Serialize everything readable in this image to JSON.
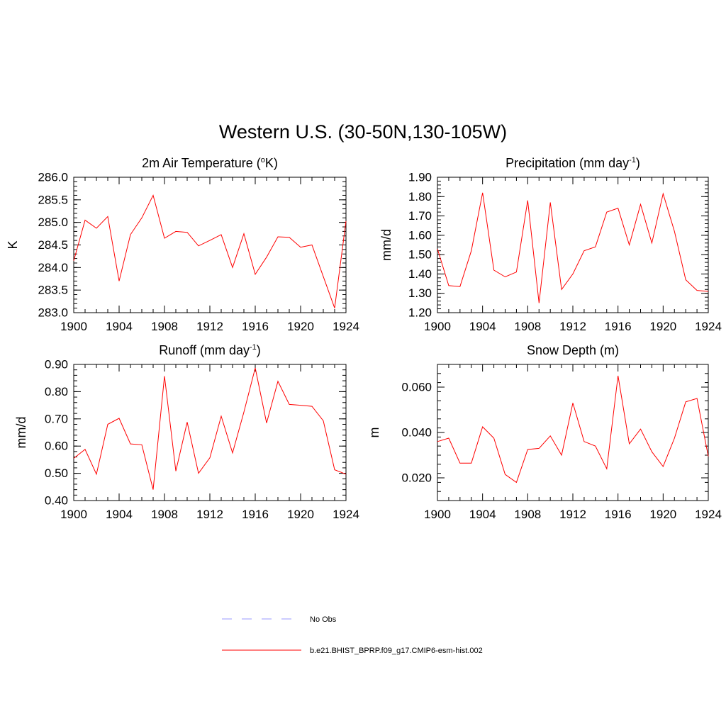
{
  "figure": {
    "title": "Western U.S. (30-50N,130-105W)"
  },
  "legend": {
    "items": [
      {
        "label": "No Obs",
        "color": "#9999ff",
        "style": "dashed"
      },
      {
        "label": "b.e21.BHIST_BPRP.f09_g17.CMIP6-esm-hist.002",
        "color": "#ff0000",
        "style": "solid"
      }
    ]
  },
  "chart_data": [
    {
      "type": "line",
      "title_main": "2m Air Temperature (",
      "title_sup": "o",
      "title_rest": "K)",
      "ylabel": "K",
      "xlim": [
        1900,
        1924
      ],
      "ylim": [
        283.0,
        286.0
      ],
      "xticks": [
        "1900",
        "1904",
        "1908",
        "1912",
        "1916",
        "1920",
        "1924"
      ],
      "yticks": [
        "283.0",
        "283.5",
        "284.0",
        "284.5",
        "285.0",
        "285.5",
        "286.0"
      ],
      "line_color": "#ff0000",
      "x": [
        1900,
        1901,
        1902,
        1903,
        1904,
        1905,
        1906,
        1907,
        1908,
        1909,
        1910,
        1911,
        1912,
        1913,
        1914,
        1915,
        1916,
        1917,
        1918,
        1919,
        1920,
        1921,
        1922,
        1923,
        1924
      ],
      "series": [
        {
          "values": [
            284.15,
            285.05,
            284.87,
            285.13,
            283.7,
            284.73,
            285.1,
            285.6,
            284.65,
            284.8,
            284.78,
            284.48,
            284.6,
            284.73,
            284.0,
            284.75,
            283.85,
            284.23,
            284.68,
            284.67,
            284.45,
            284.5,
            283.8,
            283.1,
            285.03
          ]
        }
      ]
    },
    {
      "type": "line",
      "title_main": "Precipitation (mm day",
      "title_sup": "-1",
      "title_rest": ")",
      "ylabel": "mm/d",
      "xlim": [
        1900,
        1924
      ],
      "ylim": [
        1.2,
        1.9
      ],
      "xticks": [
        "1900",
        "1904",
        "1908",
        "1912",
        "1916",
        "1920",
        "1924"
      ],
      "yticks": [
        "1.20",
        "1.30",
        "1.40",
        "1.50",
        "1.60",
        "1.70",
        "1.80",
        "1.90"
      ],
      "line_color": "#ff0000",
      "x": [
        1900,
        1901,
        1902,
        1903,
        1904,
        1905,
        1906,
        1907,
        1908,
        1909,
        1910,
        1911,
        1912,
        1913,
        1914,
        1915,
        1916,
        1917,
        1918,
        1919,
        1920,
        1921,
        1922,
        1923,
        1924
      ],
      "series": [
        {
          "values": [
            1.53,
            1.34,
            1.335,
            1.52,
            1.82,
            1.42,
            1.385,
            1.41,
            1.78,
            1.25,
            1.77,
            1.32,
            1.4,
            1.52,
            1.54,
            1.72,
            1.74,
            1.55,
            1.76,
            1.56,
            1.815,
            1.62,
            1.37,
            1.315,
            1.31
          ]
        }
      ]
    },
    {
      "type": "line",
      "title_main": "Runoff (mm day",
      "title_sup": "-1",
      "title_rest": ")",
      "ylabel": "mm/d",
      "xlim": [
        1900,
        1924
      ],
      "ylim": [
        0.4,
        0.9
      ],
      "xticks": [
        "1900",
        "1904",
        "1908",
        "1912",
        "1916",
        "1920",
        "1924"
      ],
      "yticks": [
        "0.40",
        "0.50",
        "0.60",
        "0.70",
        "0.80",
        "0.90"
      ],
      "line_color": "#ff0000",
      "x": [
        1900,
        1901,
        1902,
        1903,
        1904,
        1905,
        1906,
        1907,
        1908,
        1909,
        1910,
        1911,
        1912,
        1913,
        1914,
        1915,
        1916,
        1917,
        1918,
        1919,
        1920,
        1921,
        1922,
        1923,
        1924
      ],
      "series": [
        {
          "values": [
            0.555,
            0.588,
            0.497,
            0.68,
            0.702,
            0.608,
            0.605,
            0.44,
            0.857,
            0.508,
            0.688,
            0.5,
            0.557,
            0.71,
            0.575,
            0.725,
            0.887,
            0.685,
            0.838,
            0.753,
            0.75,
            0.746,
            0.693,
            0.513,
            0.497
          ]
        }
      ]
    },
    {
      "type": "line",
      "title_main": "Snow Depth (m)",
      "title_sup": "",
      "title_rest": "",
      "ylabel": "m",
      "xlim": [
        1900,
        1924
      ],
      "ylim": [
        0.01,
        0.07
      ],
      "xticks": [
        "1900",
        "1904",
        "1908",
        "1912",
        "1916",
        "1920",
        "1924"
      ],
      "yticks": [
        "0.020",
        "0.040",
        "0.060"
      ],
      "ytick_values": [
        0.02,
        0.04,
        0.06
      ],
      "line_color": "#ff0000",
      "x": [
        1900,
        1901,
        1902,
        1903,
        1904,
        1905,
        1906,
        1907,
        1908,
        1909,
        1910,
        1911,
        1912,
        1913,
        1914,
        1915,
        1916,
        1917,
        1918,
        1919,
        1920,
        1921,
        1922,
        1923,
        1924
      ],
      "series": [
        {
          "values": [
            0.036,
            0.0375,
            0.0265,
            0.0265,
            0.0425,
            0.0375,
            0.0215,
            0.018,
            0.0325,
            0.033,
            0.0385,
            0.03,
            0.053,
            0.036,
            0.034,
            0.024,
            0.065,
            0.035,
            0.0415,
            0.0315,
            0.025,
            0.0375,
            0.0535,
            0.055,
            0.0295
          ]
        }
      ]
    }
  ]
}
